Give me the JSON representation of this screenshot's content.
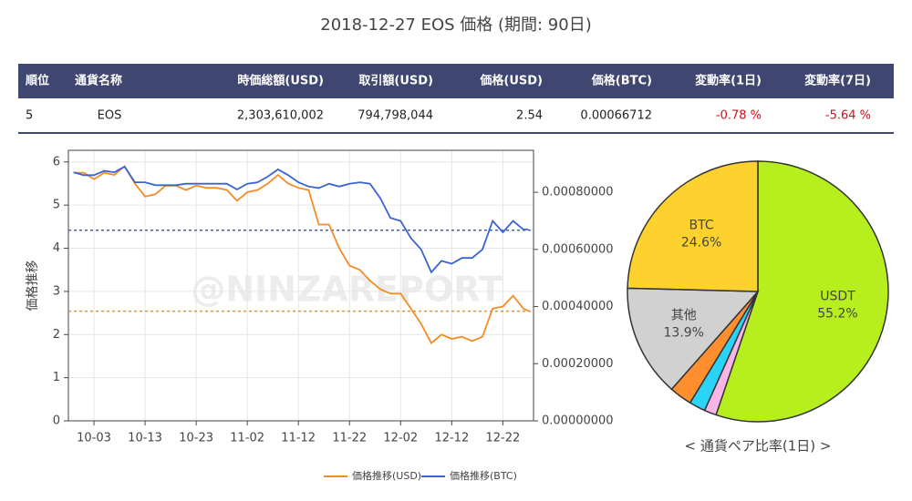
{
  "title": "2018-12-27 EOS 価格 (期間: 90日)",
  "table": {
    "headers": [
      "順位",
      "通貨名称",
      "時価総額(USD)",
      "取引額(USD)",
      "価格(USD)",
      "価格(BTC)",
      "変動率(1日)",
      "変動率(7日)"
    ],
    "rows": [
      [
        "5",
        "EOS",
        "2,303,610,002",
        "794,798,044",
        "2.54",
        "0.00066712",
        "-0.78 %",
        "-5.64 %"
      ]
    ]
  },
  "chart_data": [
    {
      "type": "line",
      "ylabel": "価格推移",
      "watermark": "@NINZAREPORT",
      "grid": true,
      "x": [
        "09-29",
        "10-01",
        "10-03",
        "10-05",
        "10-07",
        "10-09",
        "10-11",
        "10-13",
        "10-15",
        "10-17",
        "10-19",
        "10-21",
        "10-23",
        "10-25",
        "10-27",
        "10-29",
        "10-31",
        "11-02",
        "11-04",
        "11-06",
        "11-08",
        "11-10",
        "11-12",
        "11-14",
        "11-16",
        "11-18",
        "11-20",
        "11-22",
        "11-24",
        "11-26",
        "11-28",
        "11-30",
        "12-02",
        "12-04",
        "12-06",
        "12-08",
        "12-10",
        "12-12",
        "12-14",
        "12-16",
        "12-18",
        "12-20",
        "12-22",
        "12-24",
        "12-26",
        "12-27"
      ],
      "xlim": [
        "09-28",
        "12-28"
      ],
      "xticks": [
        "10-03",
        "10-13",
        "10-23",
        "11-02",
        "11-12",
        "11-22",
        "12-02",
        "12-12",
        "12-22"
      ],
      "ylim": [
        0,
        6.27
      ],
      "yticks": [
        0,
        1,
        2,
        3,
        4,
        5,
        6
      ],
      "y2lim": [
        0,
        0.000947
      ],
      "y2ticks": [
        {
          "value": 0,
          "label": "0.00000000"
        },
        {
          "value": 0.0002,
          "label": "0.00020000"
        },
        {
          "value": 0.0004,
          "label": "0.00040000"
        },
        {
          "value": 0.0006,
          "label": "0.00060000"
        },
        {
          "value": 0.0008,
          "label": "0.00080000"
        }
      ],
      "series": [
        {
          "name": "価格推移(USD)",
          "color": "#f58b23",
          "values": [
            5.75,
            5.75,
            5.6,
            5.75,
            5.7,
            5.9,
            5.5,
            5.2,
            5.25,
            5.45,
            5.45,
            5.35,
            5.45,
            5.4,
            5.4,
            5.35,
            5.1,
            5.3,
            5.35,
            5.5,
            5.7,
            5.5,
            5.4,
            5.35,
            4.55,
            4.55,
            4.0,
            3.6,
            3.5,
            3.25,
            3.05,
            2.95,
            2.95,
            2.6,
            2.25,
            1.8,
            2.0,
            1.9,
            1.95,
            1.85,
            1.95,
            2.6,
            2.65,
            2.9,
            2.6,
            2.55
          ]
        },
        {
          "name": "価格推移(BTC)",
          "color": "#3b63d1",
          "axis": "y2",
          "values": [
            0.00087,
            0.00086,
            0.00086,
            0.000875,
            0.00087,
            0.00089,
            0.000835,
            0.000835,
            0.000825,
            0.000825,
            0.000825,
            0.00083,
            0.00083,
            0.00083,
            0.00083,
            0.00083,
            0.00081,
            0.00083,
            0.000835,
            0.000855,
            0.00088,
            0.00086,
            0.000835,
            0.00082,
            0.000815,
            0.00083,
            0.00082,
            0.00083,
            0.000835,
            0.00083,
            0.00078,
            0.00071,
            0.0007,
            0.00064,
            0.0006,
            0.00052,
            0.00056,
            0.00055,
            0.00057,
            0.00057,
            0.0006,
            0.0007,
            0.00066,
            0.0007,
            0.00067,
            0.00067
          ]
        }
      ],
      "hlines": [
        {
          "value": 2.54,
          "color": "#f58b23"
        },
        {
          "value": 0.00066712,
          "axis": "y2",
          "color": "#3b63d1"
        }
      ]
    },
    {
      "type": "pie",
      "caption": "< 通貨ペア比率(1日) >",
      "categories": [
        "USDT",
        null,
        null,
        null,
        "其他",
        "BTC"
      ],
      "values": [
        55.2,
        1.5,
        2.0,
        2.8,
        13.9,
        24.6
      ],
      "value_labels": [
        "55.2%",
        null,
        null,
        null,
        "13.9%",
        "24.6%"
      ],
      "colors": [
        "#b6ee1e",
        "#f8b5e6",
        "#2ad4f7",
        "#ff8f2e",
        "#d1d1d1",
        "#fdd12e"
      ]
    }
  ]
}
